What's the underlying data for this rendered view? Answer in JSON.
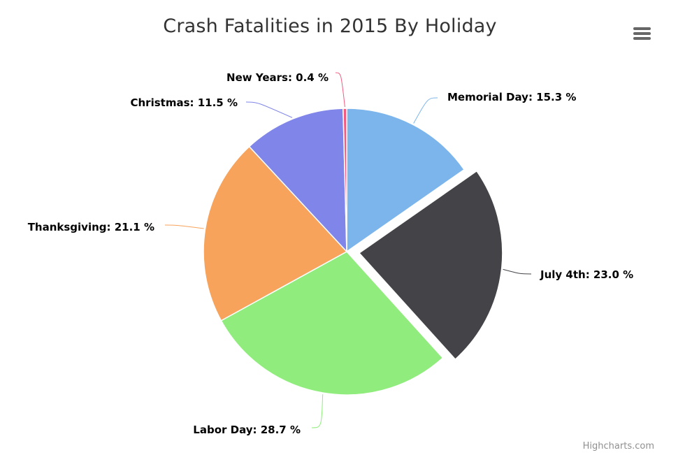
{
  "chart_data": {
    "type": "pie",
    "title": "Crash Fatalities in 2015 By Holiday",
    "unit": "%",
    "slices": [
      {
        "name": "Memorial Day",
        "value": 15.3,
        "label": "Memorial Day: 15.3 %",
        "color": "#7cb5ec",
        "exploded": false
      },
      {
        "name": "July 4th",
        "value": 23.0,
        "label": "July 4th: 23.0 %",
        "color": "#434348",
        "exploded": true
      },
      {
        "name": "Labor Day",
        "value": 28.7,
        "label": "Labor Day: 28.7 %",
        "color": "#90ed7d",
        "exploded": false
      },
      {
        "name": "Thanksgiving",
        "value": 21.1,
        "label": "Thanksgiving: 21.1 %",
        "color": "#f7a35c",
        "exploded": false
      },
      {
        "name": "Christmas",
        "value": 11.5,
        "label": "Christmas: 11.5 %",
        "color": "#8085e9",
        "exploded": false
      },
      {
        "name": "New Years",
        "value": 0.4,
        "label": "New Years: 0.4 %",
        "color": "#f15c80",
        "exploded": false
      }
    ]
  },
  "toolbar": {
    "menu_icon": "hamburger-menu-icon"
  },
  "credits": {
    "text": "Highcharts.com"
  }
}
